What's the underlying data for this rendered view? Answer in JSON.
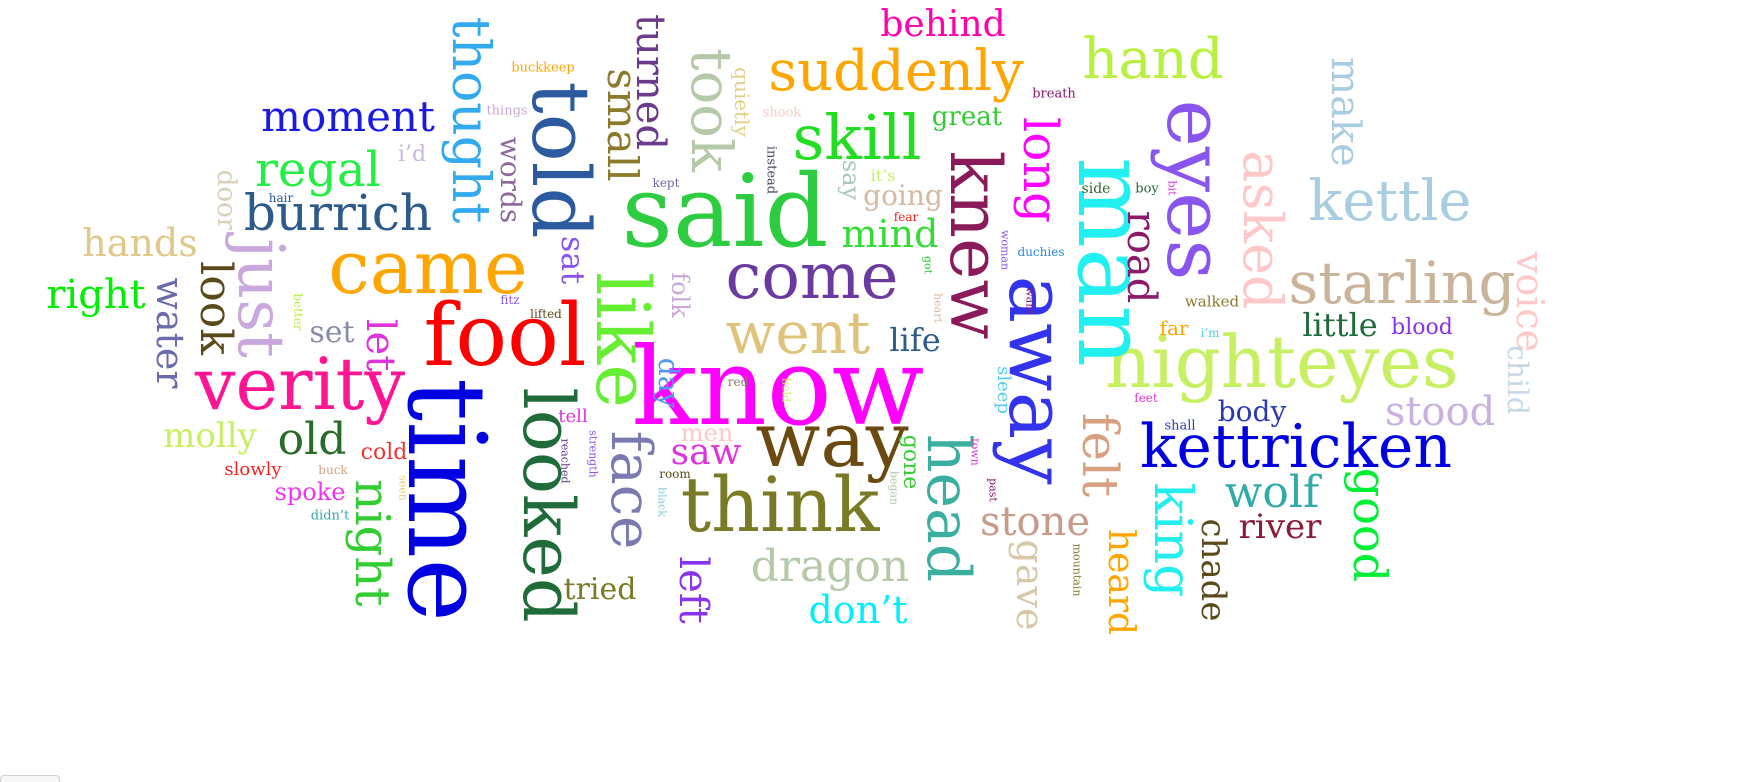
{
  "word_cloud": {
    "words": [
      {
        "text": "know",
        "color": "#ff00ff"
      },
      {
        "text": "said",
        "color": "#2ecc40"
      },
      {
        "text": "time",
        "color": "#0000e0"
      },
      {
        "text": "fool",
        "color": "#ff0000"
      },
      {
        "text": "came",
        "color": "#ffa500"
      },
      {
        "text": "verity",
        "color": "#ff1493"
      },
      {
        "text": "like",
        "color": "#66ee33"
      },
      {
        "text": "looked",
        "color": "#1f6b3a"
      },
      {
        "text": "told",
        "color": "#2c5aa0"
      },
      {
        "text": "think",
        "color": "#7a7a26"
      },
      {
        "text": "way",
        "color": "#6b4a12"
      },
      {
        "text": "come",
        "color": "#6b3aa0"
      },
      {
        "text": "went",
        "color": "#e0c37a"
      },
      {
        "text": "nighteyes",
        "color": "#c6f062"
      },
      {
        "text": "man",
        "color": "#22f0f0"
      },
      {
        "text": "away",
        "color": "#3333ee"
      },
      {
        "text": "knew",
        "color": "#8b1a5a"
      },
      {
        "text": "eyes",
        "color": "#8855ee"
      },
      {
        "text": "kettricken",
        "color": "#0000e0"
      },
      {
        "text": "head",
        "color": "#3aafa0"
      },
      {
        "text": "face",
        "color": "#7a7ab0"
      },
      {
        "text": "suddenly",
        "color": "#ffa500"
      },
      {
        "text": "skill",
        "color": "#22dd22"
      },
      {
        "text": "took",
        "color": "#b5c9a8"
      },
      {
        "text": "starling",
        "color": "#c9b49a"
      },
      {
        "text": "asked",
        "color": "#ffc8c8"
      },
      {
        "text": "long",
        "color": "#ff00ff"
      },
      {
        "text": "just",
        "color": "#c8a8dd"
      },
      {
        "text": "thought",
        "color": "#33aaee"
      },
      {
        "text": "burrich",
        "color": "#2c5a8a"
      },
      {
        "text": "kettle",
        "color": "#aacce0"
      },
      {
        "text": "felt",
        "color": "#d8a080"
      },
      {
        "text": "hand",
        "color": "#b8f040"
      },
      {
        "text": "moment",
        "color": "#1a1ae0"
      },
      {
        "text": "regal",
        "color": "#22ee44"
      },
      {
        "text": "dragon",
        "color": "#b5c9a8"
      },
      {
        "text": "king",
        "color": "#22eeee"
      },
      {
        "text": "small",
        "color": "#8a7a2a"
      },
      {
        "text": "turned",
        "color": "#6b3a8a"
      },
      {
        "text": "night",
        "color": "#33cc33"
      },
      {
        "text": "good",
        "color": "#00ee33"
      },
      {
        "text": "stone",
        "color": "#c89a88"
      },
      {
        "text": "wolf",
        "color": "#33aaaa"
      },
      {
        "text": "behind",
        "color": "#ff00aa"
      },
      {
        "text": "hands",
        "color": "#e0c88a"
      },
      {
        "text": "right",
        "color": "#00ee00"
      },
      {
        "text": "look",
        "color": "#5a4a1a"
      },
      {
        "text": "water",
        "color": "#6b6baa"
      },
      {
        "text": "old",
        "color": "#2a6b2a"
      },
      {
        "text": "stood",
        "color": "#c8b0e0"
      },
      {
        "text": "saw",
        "color": "#dd33dd"
      },
      {
        "text": "mind",
        "color": "#33dd33"
      },
      {
        "text": "road",
        "color": "#8b1a6b"
      },
      {
        "text": "make",
        "color": "#aacce0"
      },
      {
        "text": "voice",
        "color": "#ffc8c8"
      },
      {
        "text": "gave",
        "color": "#d8c8aa"
      },
      {
        "text": "heard",
        "color": "#ffa500"
      },
      {
        "text": "chade",
        "color": "#5a4a1a"
      },
      {
        "text": "river",
        "color": "#8b1a3a"
      },
      {
        "text": "little",
        "color": "#1f6b3a"
      },
      {
        "text": "don’t",
        "color": "#00eeff"
      },
      {
        "text": "left",
        "color": "#8833ee"
      },
      {
        "text": "let",
        "color": "#dd33dd"
      },
      {
        "text": "molly",
        "color": "#c6f062"
      },
      {
        "text": "tried",
        "color": "#7a7a26"
      },
      {
        "text": "words",
        "color": "#8a6a9a"
      },
      {
        "text": "sat",
        "color": "#8855ee"
      },
      {
        "text": "life",
        "color": "#2c5a8a"
      },
      {
        "text": "body",
        "color": "#2c3ab0"
      },
      {
        "text": "set",
        "color": "#8a8aaa"
      },
      {
        "text": "door",
        "color": "#d8d0b8"
      },
      {
        "text": "day",
        "color": "#5599ee"
      },
      {
        "text": "going",
        "color": "#d8b8a0"
      },
      {
        "text": "great",
        "color": "#33cc33"
      },
      {
        "text": "say",
        "color": "#a8c8b8"
      },
      {
        "text": "folk",
        "color": "#c8a8d8"
      },
      {
        "text": "men",
        "color": "#ffc8c8"
      },
      {
        "text": "child",
        "color": "#c8d8e8"
      },
      {
        "text": "spoke",
        "color": "#ee33ee"
      },
      {
        "text": "cold",
        "color": "#ee3333"
      },
      {
        "text": "gone",
        "color": "#33cc33"
      },
      {
        "text": "quietly",
        "color": "#e0d088"
      },
      {
        "text": "blood",
        "color": "#8833ee"
      },
      {
        "text": "far",
        "color": "#ffa500"
      },
      {
        "text": "sleep",
        "color": "#55ccee"
      },
      {
        "text": "i’d",
        "color": "#c8b8e0"
      },
      {
        "text": "it’s",
        "color": "#c6f062"
      },
      {
        "text": "slowly",
        "color": "#ee2222"
      },
      {
        "text": "tell",
        "color": "#dd33dd"
      },
      {
        "text": "walked",
        "color": "#8a7a2a"
      },
      {
        "text": "buckkeep",
        "color": "#ffa500"
      },
      {
        "text": "things",
        "color": "#c8a8d8"
      },
      {
        "text": "shook",
        "color": "#ffc8c8"
      },
      {
        "text": "breath",
        "color": "#8b1a6b"
      },
      {
        "text": "kept",
        "color": "#6b6baa"
      },
      {
        "text": "instead",
        "color": "#4a4a6a"
      },
      {
        "text": "fear",
        "color": "#ee2222"
      },
      {
        "text": "side",
        "color": "#2a6b2a"
      },
      {
        "text": "boy",
        "color": "#1f6b3a"
      },
      {
        "text": "bit",
        "color": "#dd33dd"
      },
      {
        "text": "duchies",
        "color": "#2288ee"
      },
      {
        "text": "woman",
        "color": "#8855ee"
      },
      {
        "text": "want",
        "color": "#8b1a6b"
      },
      {
        "text": "got",
        "color": "#33cc33"
      },
      {
        "text": "heart",
        "color": "#d8b8a0"
      },
      {
        "text": "i’m",
        "color": "#55ccee"
      },
      {
        "text": "fitz",
        "color": "#8855ee"
      },
      {
        "text": "lifted",
        "color": "#5a4a1a"
      },
      {
        "text": "better",
        "color": "#b8f040"
      },
      {
        "text": "hair",
        "color": "#2c5aa0"
      },
      {
        "text": "red",
        "color": "#8a7a7a"
      },
      {
        "text": "held",
        "color": "#c6f062"
      },
      {
        "text": "feet",
        "color": "#dd33dd"
      },
      {
        "text": "shall",
        "color": "#2c3ab0"
      },
      {
        "text": "town",
        "color": "#dd33dd"
      },
      {
        "text": "past",
        "color": "#8b1a6b"
      },
      {
        "text": "strength",
        "color": "#8855ee"
      },
      {
        "text": "reached",
        "color": "#6b3a8a"
      },
      {
        "text": "buck",
        "color": "#d8a080"
      },
      {
        "text": "seen",
        "color": "#e0d088"
      },
      {
        "text": "didn’t",
        "color": "#33aaaa"
      },
      {
        "text": "room",
        "color": "#5a4a1a"
      },
      {
        "text": "black",
        "color": "#88ccdd"
      },
      {
        "text": "began",
        "color": "#b5c9a8"
      },
      {
        "text": "mountain",
        "color": "#8a7a2a"
      }
    ]
  }
}
